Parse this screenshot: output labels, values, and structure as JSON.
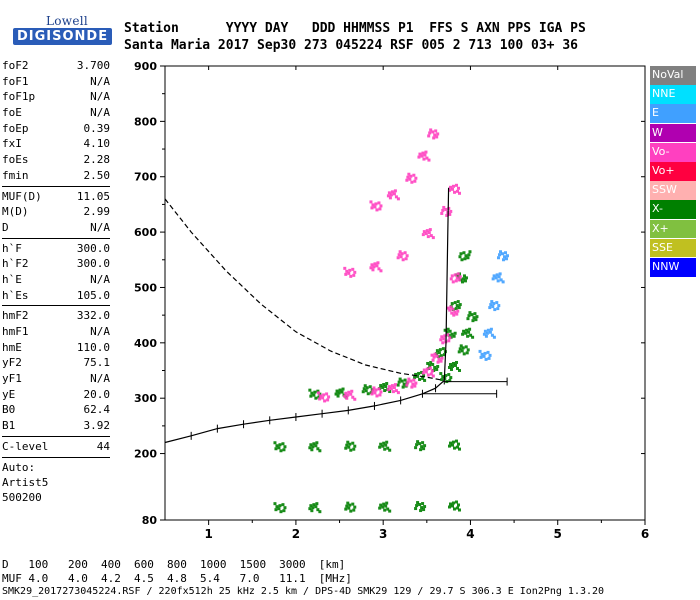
{
  "logo": {
    "top": "Lowell",
    "bottom": "DIGISONDE"
  },
  "header": {
    "row1": [
      "Station",
      "YYYY DAY",
      "DDD HHMMSS P1",
      "FFS S AXN PPS IGA PS"
    ],
    "row2": [
      "Santa Maria",
      "2017 Sep30",
      "273 045224 RSF",
      "005 2 713 100 03+ 36"
    ]
  },
  "params": [
    {
      "name": "foF2",
      "value": "3.700"
    },
    {
      "name": "foF1",
      "value": "N/A"
    },
    {
      "name": "foF1p",
      "value": "N/A"
    },
    {
      "name": "foE",
      "value": "N/A"
    },
    {
      "name": "foEp",
      "value": "0.39"
    },
    {
      "name": "fxI",
      "value": "4.10"
    },
    {
      "name": "foEs",
      "value": "2.28"
    },
    {
      "name": "fmin",
      "value": "2.50"
    },
    {
      "sep": true
    },
    {
      "name": "MUF(D)",
      "value": "11.05"
    },
    {
      "name": "M(D)",
      "value": "2.99"
    },
    {
      "name": "D",
      "value": "N/A"
    },
    {
      "sep": true
    },
    {
      "name": "h`F",
      "value": "300.0"
    },
    {
      "name": "h`F2",
      "value": "300.0"
    },
    {
      "name": "h`E",
      "value": "N/A"
    },
    {
      "name": "h`Es",
      "value": "105.0"
    },
    {
      "sep": true
    },
    {
      "name": "hmF2",
      "value": "332.0"
    },
    {
      "name": "hmF1",
      "value": "N/A"
    },
    {
      "name": "hmE",
      "value": "110.0"
    },
    {
      "name": "yF2",
      "value": "75.1"
    },
    {
      "name": "yF1",
      "value": "N/A"
    },
    {
      "name": "yE",
      "value": "20.0"
    },
    {
      "name": "B0",
      "value": "62.4"
    },
    {
      "name": "B1",
      "value": "3.92"
    },
    {
      "sep": true
    },
    {
      "name": "C-level",
      "value": "44"
    },
    {
      "sep": true
    },
    {
      "text": "Auto:"
    },
    {
      "text": "Artist5"
    },
    {
      "text": "500200"
    }
  ],
  "legend": [
    {
      "label": "NoVal",
      "color": "#808080"
    },
    {
      "label": "NNE",
      "color": "#00e0ff"
    },
    {
      "label": "E",
      "color": "#40a0ff"
    },
    {
      "label": "W",
      "color": "#b000b0"
    },
    {
      "label": "Vo-",
      "color": "#ff40c0"
    },
    {
      "label": "Vo+",
      "color": "#ff0040"
    },
    {
      "label": "SSW",
      "color": "#ffb0b0"
    },
    {
      "label": "X-",
      "color": "#008000"
    },
    {
      "label": "X+",
      "color": "#80c040"
    },
    {
      "label": "SSE",
      "color": "#c0c020"
    },
    {
      "label": "NNW",
      "color": "#0000ff"
    }
  ],
  "chart_data": {
    "type": "scatter",
    "xlim": [
      0.5,
      6.0
    ],
    "ylim": [
      80,
      900
    ],
    "x_ticks": [
      1,
      2,
      3,
      4,
      5,
      6
    ],
    "y_ticks": [
      80,
      200,
      300,
      400,
      500,
      600,
      700,
      800,
      900
    ],
    "xlabel": "",
    "ylabel": "",
    "grid": false,
    "legend_position": "right",
    "traces": [
      {
        "color_ref": "X-",
        "points": [
          [
            2.2,
            310
          ],
          [
            2.5,
            312
          ],
          [
            2.8,
            318
          ],
          [
            3.0,
            322
          ],
          [
            3.2,
            330
          ],
          [
            3.4,
            342
          ],
          [
            3.55,
            360
          ],
          [
            3.65,
            385
          ],
          [
            3.75,
            420
          ],
          [
            3.82,
            470
          ],
          [
            3.88,
            520
          ],
          [
            3.92,
            560
          ]
        ]
      },
      {
        "color_ref": "Vo-",
        "points": [
          [
            2.3,
            305
          ],
          [
            2.6,
            308
          ],
          [
            2.9,
            314
          ],
          [
            3.1,
            320
          ],
          [
            3.3,
            330
          ],
          [
            3.5,
            350
          ],
          [
            3.6,
            375
          ],
          [
            3.7,
            410
          ],
          [
            3.78,
            460
          ],
          [
            3.82,
            520
          ]
        ]
      },
      {
        "color_ref": "X-",
        "points": [
          [
            1.8,
            215
          ],
          [
            2.2,
            215
          ],
          [
            2.6,
            216
          ],
          [
            3.0,
            216
          ],
          [
            3.4,
            217
          ],
          [
            3.8,
            218
          ]
        ]
      },
      {
        "color_ref": "X-",
        "points": [
          [
            1.8,
            105
          ],
          [
            2.2,
            105
          ],
          [
            2.6,
            106
          ],
          [
            3.0,
            106
          ],
          [
            3.4,
            107
          ],
          [
            3.8,
            108
          ]
        ]
      },
      {
        "color_ref": "Vo-",
        "points": [
          [
            2.6,
            530
          ],
          [
            2.9,
            540
          ],
          [
            3.2,
            560
          ],
          [
            3.5,
            600
          ],
          [
            3.7,
            640
          ],
          [
            3.8,
            680
          ]
        ]
      },
      {
        "color_ref": "Vo-",
        "points": [
          [
            2.9,
            650
          ],
          [
            3.1,
            670
          ],
          [
            3.3,
            700
          ],
          [
            3.45,
            740
          ],
          [
            3.55,
            780
          ]
        ]
      },
      {
        "color_ref": "X-",
        "points": [
          [
            3.7,
            340
          ],
          [
            3.8,
            360
          ],
          [
            3.9,
            390
          ],
          [
            3.95,
            420
          ],
          [
            4.0,
            450
          ]
        ]
      },
      {
        "color_ref": "E",
        "points": [
          [
            4.15,
            380
          ],
          [
            4.2,
            420
          ],
          [
            4.25,
            470
          ],
          [
            4.3,
            520
          ],
          [
            4.35,
            560
          ]
        ]
      }
    ],
    "profile": {
      "points": [
        [
          0.5,
          220
        ],
        [
          0.8,
          232
        ],
        [
          1.1,
          245
        ],
        [
          1.4,
          253
        ],
        [
          1.7,
          260
        ],
        [
          2.0,
          266
        ],
        [
          2.3,
          272
        ],
        [
          2.6,
          278
        ],
        [
          2.9,
          286
        ],
        [
          3.2,
          296
        ],
        [
          3.45,
          308
        ],
        [
          3.6,
          318
        ],
        [
          3.7,
          332
        ]
      ]
    },
    "upper_profile": {
      "points": [
        [
          3.7,
          332
        ],
        [
          3.72,
          400
        ],
        [
          3.73,
          500
        ],
        [
          3.74,
          600
        ],
        [
          3.75,
          680
        ]
      ]
    },
    "dashed_curve": {
      "points": [
        [
          0.5,
          660
        ],
        [
          0.8,
          600
        ],
        [
          1.2,
          530
        ],
        [
          1.6,
          470
        ],
        [
          2.0,
          420
        ],
        [
          2.4,
          385
        ],
        [
          2.8,
          360
        ],
        [
          3.2,
          345
        ],
        [
          3.5,
          338
        ],
        [
          3.7,
          332
        ]
      ]
    },
    "error_bars": [
      {
        "y": 330,
        "x_start": 3.7,
        "x_end": 4.42
      },
      {
        "y": 308,
        "x_start": 3.45,
        "x_end": 4.3
      }
    ]
  },
  "footer": {
    "row1": [
      "D",
      "100",
      "200",
      "400",
      "600",
      "800",
      "1000",
      "1500",
      "3000",
      "[km]"
    ],
    "row2": [
      "MUF",
      "4.0",
      "4.0",
      "4.2",
      "4.5",
      "4.8",
      "5.4",
      "7.0",
      "11.1",
      "[MHz]"
    ],
    "info": "SMK29_2017273045224.RSF / 220fx512h 25 kHz 2.5 km / DPS-4D SMK29 129 / 29.7 S 306.3 E Ion2Png 1.3.20"
  }
}
